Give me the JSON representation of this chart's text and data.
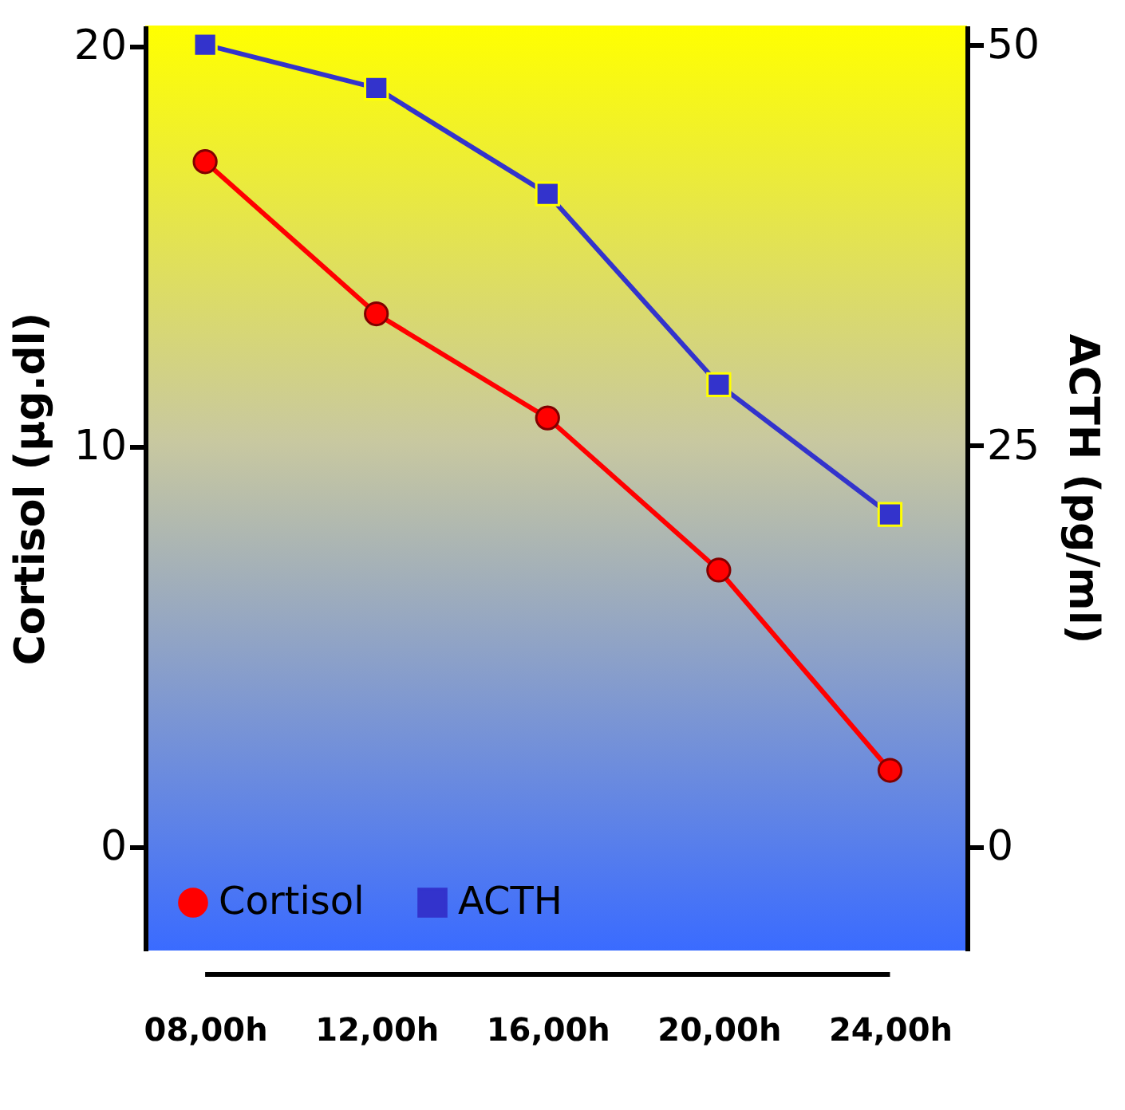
{
  "chart_data": {
    "type": "line",
    "ylabel": "Cortisol (µg.dl)",
    "y2label": "ACTH (pg/ml)",
    "categories": [
      "08,00h",
      "12,00h",
      "16,00h",
      "20,00h",
      "24,00h"
    ],
    "series": [
      {
        "name": "Cortisol",
        "color": "#ff0000",
        "marker": "circle",
        "values": [
          17.1,
          13.3,
          10.7,
          6.9,
          1.9
        ]
      },
      {
        "name": "ACTH",
        "color": "#3333cc",
        "marker": "square",
        "axis": "y2",
        "values": [
          50,
          47.3,
          40.7,
          28.8,
          20.7
        ]
      }
    ],
    "ylim": [
      -2.6,
      20.5
    ],
    "yticks": [
      0,
      10,
      20
    ],
    "y2lim": [
      -6.5,
      51.2
    ],
    "y2ticks": [
      0,
      25,
      50
    ],
    "grid": false,
    "legend": "bottom left"
  }
}
